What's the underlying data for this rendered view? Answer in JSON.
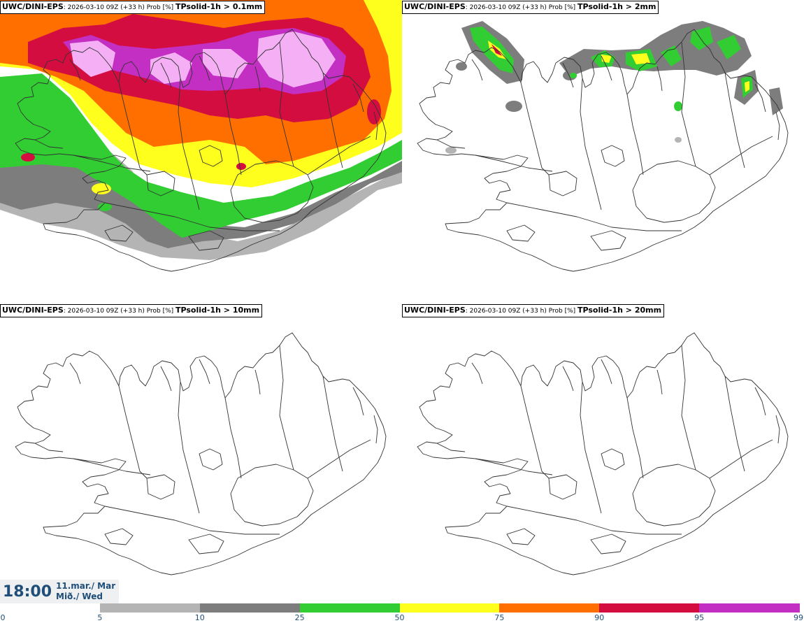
{
  "panels": [
    {
      "model": "UWC/DINI-EPS",
      "meta": ": 2026-03-10 09Z (+33 h) Prob [%] ",
      "variable": "TPsolid-1h > 0.1mm"
    },
    {
      "model": "UWC/DINI-EPS",
      "meta": ": 2026-03-10 09Z (+33 h) Prob [%] ",
      "variable": "TPsolid-1h > 2mm"
    },
    {
      "model": "UWC/DINI-EPS",
      "meta": ": 2026-03-10 09Z (+33 h) Prob [%] ",
      "variable": "TPsolid-1h > 10mm"
    },
    {
      "model": "UWC/DINI-EPS",
      "meta": ": 2026-03-10 09Z (+33 h) Prob [%] ",
      "variable": "TPsolid-1h > 20mm"
    }
  ],
  "valid_time": {
    "time": "18:00",
    "date_line1": "11.mar./ Mar",
    "date_line2": "Mið./ Wed"
  },
  "colorbar": {
    "ticks": [
      "0",
      "5",
      "10",
      "25",
      "50",
      "75",
      "90",
      "95",
      "99"
    ],
    "colors": [
      "#ffffff",
      "#b4b4b4",
      "#7d7d7d",
      "#32cd32",
      "#ffff1e",
      "#ff6f00",
      "#d40d41",
      "#c22fc2",
      "#f5b0f5"
    ]
  },
  "palette": {
    "grey_light": "#b4b4b4",
    "grey_dark": "#7d7d7d",
    "green": "#32cd32",
    "yellow": "#ffff1e",
    "orange": "#ff6f00",
    "red": "#d40d41",
    "purple": "#c22fc2",
    "pink": "#f5b0f5",
    "coast": "#333333",
    "text": "#1f4e78"
  }
}
